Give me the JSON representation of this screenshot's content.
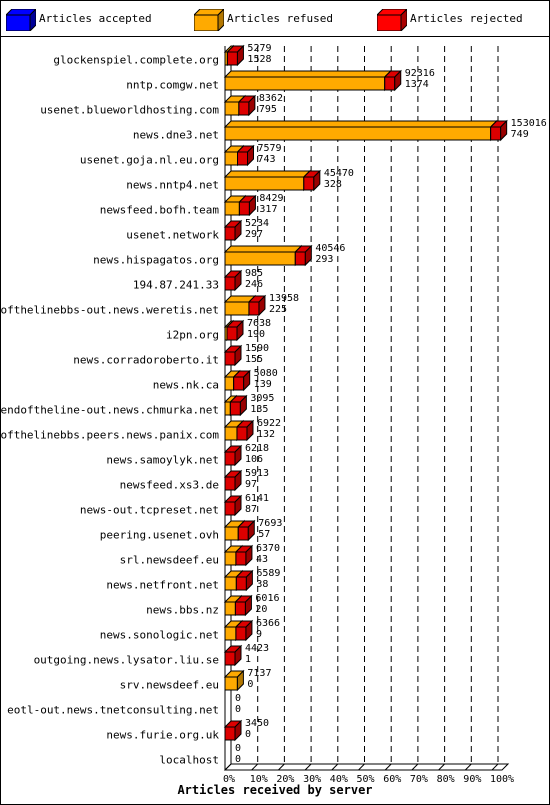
{
  "chart_data": {
    "type": "bar",
    "orientation": "horizontal",
    "stacked": true,
    "legend": {
      "position": "top",
      "items": [
        {
          "name": "Articles accepted",
          "color": "#0000ff"
        },
        {
          "name": "Articles refused",
          "color": "#ffaa00"
        },
        {
          "name": "Articles rejected",
          "color": "#ff0000"
        }
      ]
    },
    "xlabel": "Articles received by server",
    "x_ticks": [
      "0%",
      "10%",
      "20%",
      "30%",
      "40%",
      "50%",
      "60%",
      "70%",
      "80%",
      "90%",
      "100%"
    ],
    "xlim": [
      0,
      153765
    ],
    "grid": "vertical dashed at each 10%",
    "categories": [
      "glockenspiel.complete.org",
      "nntp.comgw.net",
      "usenet.blueworldhosting.com",
      "news.dne3.net",
      "usenet.goja.nl.eu.org",
      "news.nntp4.net",
      "newsfeed.bofh.team",
      "usenet.network",
      "news.hispagatos.org",
      "194.87.241.33",
      "endofthelinebbs-out.news.weretis.net",
      "i2pn.org",
      "news.corradoroberto.it",
      "news.nk.ca",
      "endoftheline-out.news.chmurka.net",
      "endofthelinebbs.peers.news.panix.com",
      "news.samoylyk.net",
      "newsfeed.xs3.de",
      "news-out.tcpreset.net",
      "peering.usenet.ovh",
      "srl.newsdeef.eu",
      "news.netfront.net",
      "news.bbs.nz",
      "news.sonologic.net",
      "outgoing.news.lysator.liu.se",
      "srv.newsdeef.eu",
      "eotl-out.news.tnetconsulting.net",
      "news.furie.org.uk",
      "localhost"
    ],
    "series": [
      {
        "name": "Articles accepted",
        "values": [
          0,
          0,
          0,
          0,
          0,
          0,
          0,
          0,
          0,
          0,
          0,
          0,
          0,
          0,
          0,
          0,
          0,
          0,
          0,
          0,
          0,
          0,
          0,
          0,
          0,
          0,
          0,
          0,
          0
        ]
      },
      {
        "name": "Articles refused",
        "values": [
          1400,
          92000,
          8000,
          153000,
          7200,
          45400,
          8300,
          0,
          40500,
          0,
          13800,
          1000,
          0,
          5000,
          3095,
          6900,
          0,
          0,
          0,
          7650,
          6300,
          6550,
          6000,
          6300,
          0,
          7137,
          0,
          0,
          0
        ]
      },
      {
        "name": "Articles rejected",
        "values": [
          1528,
          1374,
          795,
          749,
          743,
          328,
          317,
          297,
          293,
          246,
          225,
          190,
          155,
          139,
          135,
          132,
          106,
          97,
          87,
          57,
          43,
          38,
          20,
          9,
          1,
          0,
          0,
          0,
          0
        ]
      }
    ],
    "value_labels_top": [
      "5279",
      "92316",
      "8362",
      "153016",
      "7579",
      "45470",
      "8429",
      "5234",
      "40546",
      "985",
      "13958",
      "7638",
      "1590",
      "5080",
      "3095",
      "6922",
      "6218",
      "5913",
      "6141",
      "7693",
      "6370",
      "6589",
      "6016",
      "6366",
      "4423",
      "7137",
      "0",
      "3450",
      "0"
    ],
    "value_labels_bottom": [
      "1528",
      "1374",
      "795",
      "749",
      "743",
      "328",
      "317",
      "297",
      "293",
      "246",
      "225",
      "190",
      "155",
      "139",
      "135",
      "132",
      "106",
      "97",
      "87",
      "57",
      "43",
      "38",
      "20",
      "9",
      "1",
      "0",
      "0",
      "0",
      "0"
    ]
  }
}
